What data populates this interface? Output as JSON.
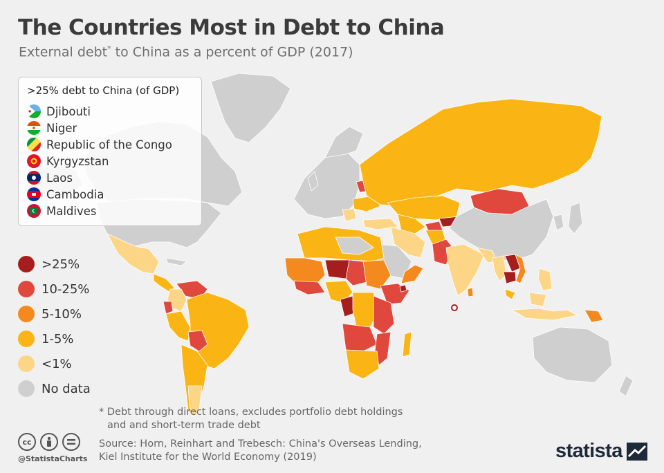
{
  "title": "The Countries Most in Debt to China",
  "subtitle_main": "External debt",
  "subtitle_mark": "*",
  "subtitle_rest": " to China as a percent of GDP (2017)",
  "flag_box": {
    "title": ">25% debt to China (of GDP)",
    "countries": [
      "Djibouti",
      "Niger",
      "Republic of the Congo",
      "Kyrgyzstan",
      "Laos",
      "Cambodia",
      "Maldives"
    ]
  },
  "legend": [
    {
      "label": ">25%",
      "color": "#a51d1d"
    },
    {
      "label": "10-25%",
      "color": "#e0483d"
    },
    {
      "label": "5-10%",
      "color": "#f48a1e"
    },
    {
      "label": "1-5%",
      "color": "#fab514"
    },
    {
      "label": "<1%",
      "color": "#fdd586"
    },
    {
      "label": "No data",
      "color": "#cfcfcf"
    }
  ],
  "colors": {
    "background": "#f0f0f0",
    "over25": "#a51d1d",
    "r10_25": "#e0483d",
    "r5_10": "#f48a1e",
    "r1_5": "#fab514",
    "under1": "#fdd586",
    "nodata": "#cfcfcf",
    "brand": "#1e2a3a"
  },
  "footnote_line1": "* Debt through direct loans, excludes portfolio debt holdings",
  "footnote_line2": "and and short-term trade debt",
  "source_line1": "Source: Horn, Reinhart and Trebesch: China's Overseas Lending,",
  "source_line2": "Kiel Institute for the World Economy (2019)",
  "license_icons": [
    "cc-icon",
    "attribution-icon",
    "no-derivatives-icon"
  ],
  "handle": "@StatistaCharts",
  "brand": "statista"
}
